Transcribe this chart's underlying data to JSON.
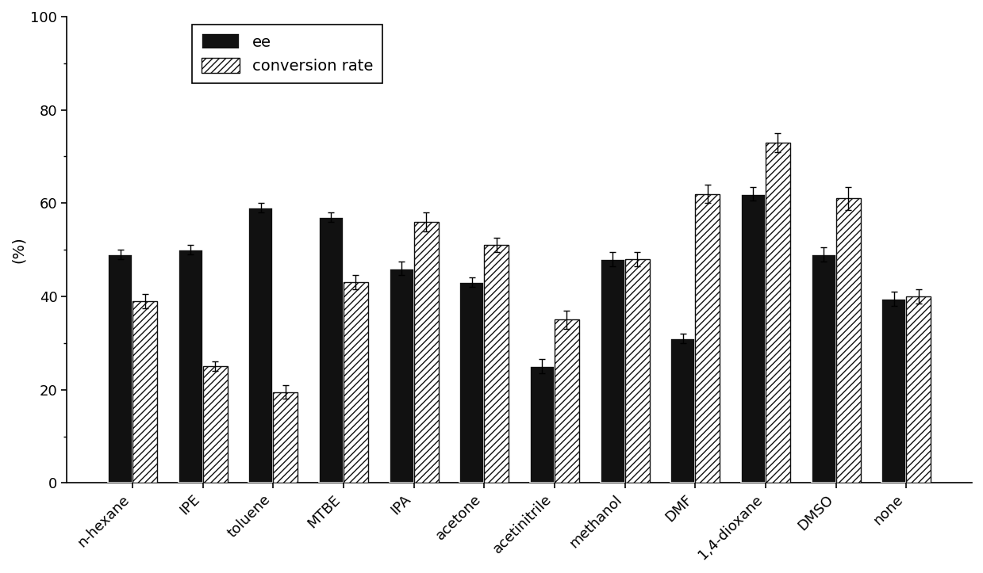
{
  "categories": [
    "n-hexane",
    "IPE",
    "toluene",
    "MTBE",
    "IPA",
    "acetone",
    "acetinitrile",
    "methanol",
    "DMF",
    "1,4-dioxane",
    "DMSO",
    "none"
  ],
  "ee_values": [
    49,
    50,
    59,
    57,
    46,
    43,
    25,
    48,
    31,
    62,
    49,
    39.5
  ],
  "ee_errors": [
    1.0,
    1.0,
    1.0,
    1.0,
    1.5,
    1.0,
    1.5,
    1.5,
    1.0,
    1.5,
    1.5,
    1.5
  ],
  "conv_values": [
    39,
    25,
    19.5,
    43,
    56,
    51,
    35,
    48,
    62,
    73,
    61,
    40
  ],
  "conv_errors": [
    1.5,
    1.0,
    1.5,
    1.5,
    2.0,
    1.5,
    2.0,
    1.5,
    2.0,
    2.0,
    2.5,
    1.5
  ],
  "ee_color": "#111111",
  "conv_color": "#ffffff",
  "conv_hatch": "////",
  "conv_edgecolor": "#111111",
  "ylabel": "(%)",
  "ylim": [
    0,
    100
  ],
  "yticks": [
    0,
    20,
    40,
    60,
    80,
    100
  ],
  "bar_width": 0.35,
  "legend_labels": [
    "ee",
    "conversion rate"
  ],
  "background_color": "#ffffff",
  "font_size": 14,
  "tick_font_size": 13
}
